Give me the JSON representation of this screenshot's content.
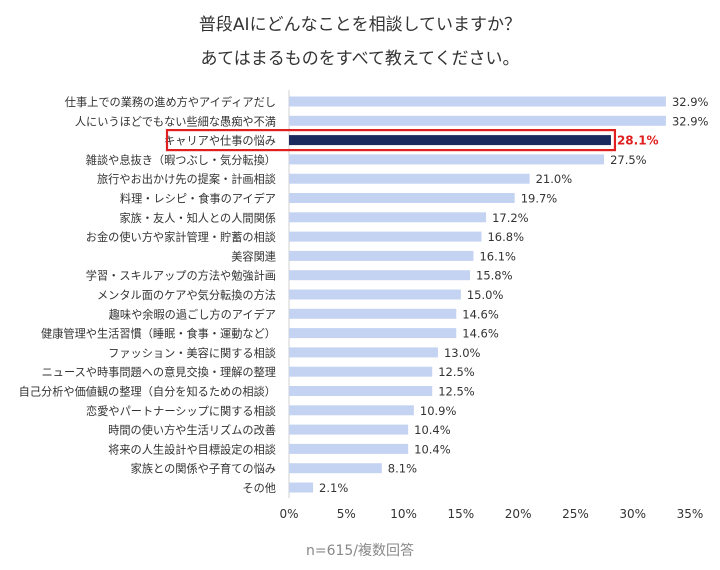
{
  "title": "普段AIにどんなことを相談していますか？",
  "subtitle": "あてはまるものをすべて教えてください。",
  "note": "n=615/複数回答",
  "colors": {
    "bar": "#c5d3f3",
    "highlight_bar": "#1b2a5e",
    "highlight_border": "#e02020",
    "highlight_text": "#e02020",
    "text": "#333333"
  },
  "chart_data": {
    "type": "bar",
    "orientation": "horizontal",
    "categories": [
      "仕事上での業務の進め方やアイディアだし",
      "人にいうほどでもない些細な愚痴や不満",
      "キャリアや仕事の悩み",
      "雑談や息抜き（暇つぶし・気分転換）",
      "旅行やお出かけ先の提案・計画相談",
      "料理・レシピ・食事のアイデア",
      "家族・友人・知人との人間関係",
      "お金の使い方や家計管理・貯蓄の相談",
      "美容関連",
      "学習・スキルアップの方法や勉強計画",
      "メンタル面のケアや気分転換の方法",
      "趣味や余暇の過ごし方のアイデア",
      "健康管理や生活習慣（睡眠・食事・運動など）",
      "ファッション・美容に関する相談",
      "ニュースや時事問題への意見交換・理解の整理",
      "自己分析や価値観の整理（自分を知るための相談）",
      "恋愛やパートナーシップに関する相談",
      "時間の使い方や生活リズムの改善",
      "将来の人生設計や目標設定の相談",
      "家族との関係や子育ての悩み",
      "その他"
    ],
    "values": [
      32.9,
      32.9,
      28.1,
      27.5,
      21.0,
      19.7,
      17.2,
      16.8,
      16.1,
      15.8,
      15.0,
      14.6,
      14.6,
      13.0,
      12.5,
      12.5,
      10.9,
      10.4,
      10.4,
      8.1,
      2.1
    ],
    "value_labels": [
      "32.9%",
      "32.9%",
      "28.1%",
      "27.5%",
      "21.0%",
      "19.7%",
      "17.2%",
      "16.8%",
      "16.1%",
      "15.8%",
      "15.0%",
      "14.6%",
      "14.6%",
      "13.0%",
      "12.5%",
      "12.5%",
      "10.9%",
      "10.4%",
      "10.4%",
      "8.1%",
      "2.1%"
    ],
    "highlight_index": 2,
    "xlim": [
      0,
      35
    ],
    "x_ticks": [
      "0%",
      "5%",
      "10%",
      "15%",
      "20%",
      "25%",
      "30%",
      "35%"
    ],
    "grid": false,
    "legend": "none"
  }
}
